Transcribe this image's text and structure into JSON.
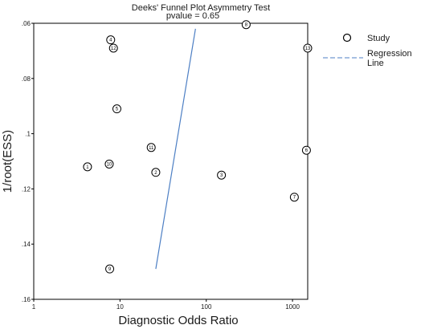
{
  "chart_data": {
    "type": "scatter",
    "title": "Deeks' Funnel Plot Asymmetry Test",
    "subtitle": "pvalue =   0.65",
    "xlabel": "Diagnostic Odds Ratio",
    "ylabel": "1/root(ESS)",
    "x_scale": "log",
    "x_ticks": [
      1,
      10,
      100,
      1000
    ],
    "x_tick_labels": [
      "1",
      "10",
      "100",
      "1000"
    ],
    "xlim": [
      1,
      1500
    ],
    "y_ticks": [
      0.06,
      0.08,
      0.1,
      0.12,
      0.14,
      0.16
    ],
    "y_tick_labels": [
      ".06",
      ".08",
      ".1",
      ".12",
      ".14",
      ".16"
    ],
    "ylim": [
      0.06,
      0.16
    ],
    "y_reversed": true,
    "grid": false,
    "legend_position": "top-right",
    "legend": [
      {
        "label": "Study",
        "symbol": "circle"
      },
      {
        "label": "Regression\nLine",
        "symbol": "dashed-line"
      }
    ],
    "points": [
      {
        "id": "1",
        "x": 4.2,
        "y": 0.112
      },
      {
        "id": "2",
        "x": 26,
        "y": 0.114
      },
      {
        "id": "3",
        "x": 150,
        "y": 0.115
      },
      {
        "id": "4",
        "x": 7.8,
        "y": 0.066
      },
      {
        "id": "5",
        "x": 9.2,
        "y": 0.091
      },
      {
        "id": "6",
        "x": 1450,
        "y": 0.106
      },
      {
        "id": "7",
        "x": 1050,
        "y": 0.123
      },
      {
        "id": "8",
        "x": 290,
        "y": 0.0605
      },
      {
        "id": "9",
        "x": 7.6,
        "y": 0.149
      },
      {
        "id": "10",
        "x": 7.5,
        "y": 0.111
      },
      {
        "id": "11",
        "x": 23,
        "y": 0.105
      },
      {
        "id": "12",
        "x": 8.4,
        "y": 0.069
      },
      {
        "id": "13",
        "x": 1500,
        "y": 0.069
      }
    ],
    "regression_line": {
      "x": [
        26,
        75
      ],
      "y": [
        0.149,
        0.062
      ],
      "color": "#4d7fc4"
    }
  }
}
